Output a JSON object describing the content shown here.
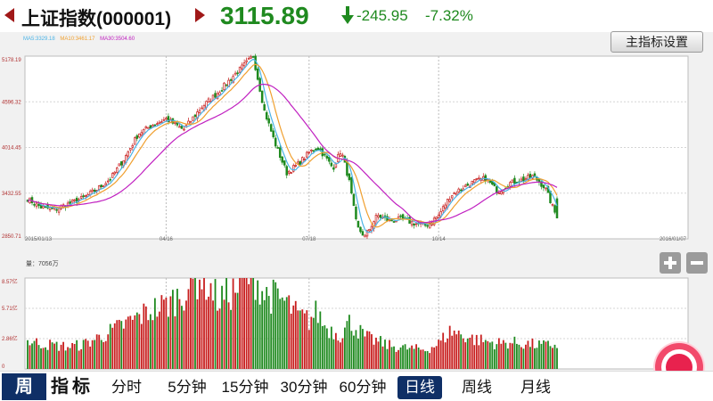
{
  "header": {
    "title": "上证指数(000001)",
    "price": "3115.89",
    "change": "-245.95",
    "change_pct": "-7.32%",
    "colors": {
      "up": "#c81e1e",
      "down": "#1f8a1f",
      "nav": "#a01818"
    }
  },
  "legend": {
    "ma5": "MA5:3329.18",
    "ma10": "MA10:3461.17",
    "ma30": "MA30:3504.60",
    "colors": {
      "ma5": "#4ab3e6",
      "ma10": "#f0a030",
      "ma30": "#c020c0"
    }
  },
  "main_indicator_button": "主指标设置",
  "volume_legend": "量：7056万",
  "tabs": {
    "period": "周",
    "indicator": "指标",
    "items": [
      "分时",
      "5分钟",
      "15分钟",
      "30分钟",
      "60分钟",
      "日线",
      "周线",
      "月线"
    ],
    "active": "日线"
  },
  "chart_data": [
    {
      "type": "candlestick",
      "title": "",
      "y_ticks": [
        "5178.19",
        "4596.32",
        "4014.45",
        "3432.55",
        "2850.71"
      ],
      "ylim": [
        2850.71,
        5178.19
      ],
      "x_ticks": [
        "2015/01/13",
        "04/16",
        "07/18",
        "10/14",
        "2016/01/07"
      ],
      "grid": true,
      "closes_by_segment": [
        {
          "from": "2015/01/13",
          "to": "04/16",
          "path": [
            3360,
            3250,
            3230,
            3300,
            3370,
            3480,
            3620,
            3880,
            4190,
            4300,
            4380
          ]
        },
        {
          "from": "04/16",
          "to": "06/12",
          "path": [
            4380,
            4240,
            4520,
            4720,
            4960,
            5178
          ]
        },
        {
          "from": "06/12",
          "to": "07/18",
          "path": [
            5178,
            4480,
            4050,
            3690,
            3800,
            3950
          ]
        },
        {
          "from": "07/18",
          "to": "08/26",
          "path": [
            3950,
            4020,
            3900,
            3750,
            3980,
            3600,
            3000,
            2880
          ]
        },
        {
          "from": "08/26",
          "to": "10/14",
          "path": [
            2880,
            3150,
            3080,
            3100,
            3050,
            3020,
            3150
          ]
        },
        {
          "from": "10/14",
          "to": "2016/01/07",
          "path": [
            3150,
            3400,
            3500,
            3580,
            3620,
            3450,
            3560,
            3600,
            3650,
            3500,
            3115.89
          ]
        }
      ],
      "series": [
        {
          "name": "MA5:3329.18",
          "color": "#4ab3e6"
        },
        {
          "name": "MA10:3461.17",
          "color": "#f0a030"
        },
        {
          "name": "MA30:3504.60",
          "color": "#c020c0"
        }
      ]
    },
    {
      "type": "bar",
      "title": "量：7056万",
      "y_ticks": [
        "8.57亿",
        "5.71亿",
        "2.86亿",
        "0"
      ],
      "ylim": [
        0,
        8.57
      ],
      "unit": "亿",
      "volume_profile": [
        {
          "from": "2015/01/13",
          "to": "04/16",
          "values": [
            2.6,
            2.4,
            2.2,
            2.1,
            2.3,
            2.9,
            3.5,
            4.2,
            4.9,
            5.6,
            6.0
          ]
        },
        {
          "from": "04/16",
          "to": "06/12",
          "values": [
            6.0,
            7.2,
            8.9,
            6.5,
            7.5,
            9.1
          ]
        },
        {
          "from": "06/12",
          "to": "07/18",
          "values": [
            9.1,
            7.0,
            6.8,
            6.2,
            5.0,
            4.6
          ]
        },
        {
          "from": "07/18",
          "to": "08/26",
          "values": [
            4.6,
            5.4,
            4.0,
            3.6,
            3.2,
            4.4,
            3.8,
            3.0
          ]
        },
        {
          "from": "08/26",
          "to": "10/14",
          "values": [
            3.0,
            2.6,
            2.2,
            2.0,
            1.9,
            1.8,
            2.4
          ]
        },
        {
          "from": "10/14",
          "to": "2016/01/07",
          "values": [
            2.4,
            3.6,
            3.2,
            2.8,
            2.6,
            2.4,
            2.5,
            2.4,
            2.3,
            2.2,
            2.3
          ]
        }
      ]
    }
  ]
}
